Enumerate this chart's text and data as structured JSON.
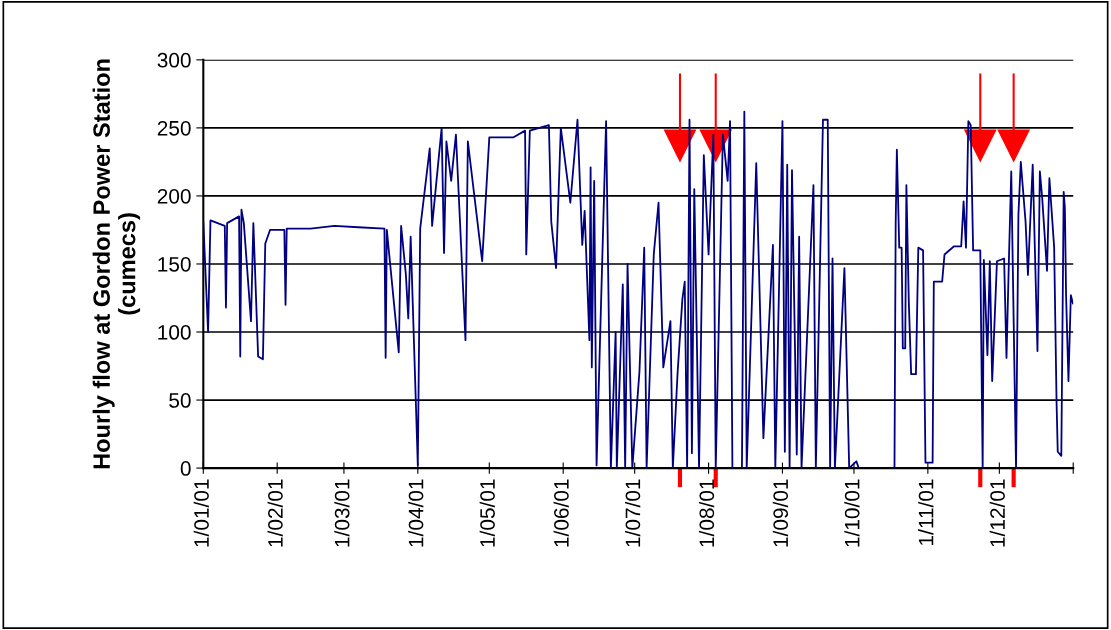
{
  "chart_data": {
    "type": "line",
    "ylabel": "Hourly flow at Gordon Power Station\n(cumecs)",
    "xlim": [
      "2001-01-01",
      "2002-01-01"
    ],
    "ylim": [
      0,
      300
    ],
    "yticks": [
      0,
      50,
      100,
      150,
      200,
      250,
      300
    ],
    "xticks": [
      {
        "value": "2001-01-01",
        "label": "1/01/01"
      },
      {
        "value": "2001-02-01",
        "label": "1/02/01"
      },
      {
        "value": "2001-03-01",
        "label": "1/03/01"
      },
      {
        "value": "2001-04-01",
        "label": "1/04/01"
      },
      {
        "value": "2001-05-01",
        "label": "1/05/01"
      },
      {
        "value": "2001-06-01",
        "label": "1/06/01"
      },
      {
        "value": "2001-07-01",
        "label": "1/07/01"
      },
      {
        "value": "2001-08-01",
        "label": "1/08/01"
      },
      {
        "value": "2001-09-01",
        "label": "1/09/01"
      },
      {
        "value": "2001-10-01",
        "label": "1/10/01"
      },
      {
        "value": "2001-11-01",
        "label": "1/11/01"
      },
      {
        "value": "2001-12-01",
        "label": "1/12/01"
      },
      {
        "value": "2002-01-01",
        "label": null
      }
    ],
    "grid": "y",
    "legend": false,
    "marker": "none",
    "line_style": "solid",
    "ref_lines": [
      {
        "axis": "x",
        "value": "2001-07-20",
        "color": "#ff0000"
      },
      {
        "axis": "x",
        "value": "2001-08-04",
        "color": "#ff0000"
      },
      {
        "axis": "x",
        "value": "2001-11-23",
        "color": "#ff0000"
      },
      {
        "axis": "x",
        "value": "2001-12-07",
        "color": "#ff0000"
      }
    ],
    "series": [
      {
        "color": "#000080",
        "x": [
          "2001-01-01",
          "2001-01-03",
          "2001-01-04",
          "2001-01-10",
          "2001-01-10T12:00",
          "2001-01-11",
          "2001-01-16",
          "2001-01-16T12:00",
          "2001-01-17",
          "2001-01-18",
          "2001-01-21",
          "2001-01-22",
          "2001-01-24",
          "2001-01-26",
          "2001-01-27",
          "2001-01-29",
          "2001-02-04",
          "2001-02-04T12:00",
          "2001-02-05",
          "2001-02-15",
          "2001-02-25",
          "2001-03-07",
          "2001-03-18",
          "2001-03-18T12:00",
          "2001-03-19",
          "2001-03-24",
          "2001-03-25",
          "2001-03-27",
          "2001-03-28",
          "2001-03-29",
          "2001-04-01",
          "2001-04-02",
          "2001-04-06",
          "2001-04-07",
          "2001-04-11",
          "2001-04-12",
          "2001-04-13",
          "2001-04-15",
          "2001-04-17",
          "2001-04-21",
          "2001-04-22",
          "2001-04-25",
          "2001-04-28",
          "2001-05-01",
          "2001-05-11",
          "2001-05-16",
          "2001-05-16T12:00",
          "2001-05-18",
          "2001-05-26",
          "2001-05-27",
          "2001-05-29",
          "2001-05-31",
          "2001-06-04",
          "2001-06-07",
          "2001-06-09",
          "2001-06-10",
          "2001-06-12",
          "2001-06-12T12:00",
          "2001-06-13",
          "2001-06-14",
          "2001-06-15",
          "2001-06-19",
          "2001-06-21",
          "2001-06-23",
          "2001-06-23T12:00",
          "2001-06-26",
          "2001-06-27",
          "2001-06-28",
          "2001-06-30",
          "2001-07-03",
          "2001-07-05",
          "2001-07-06",
          "2001-07-09",
          "2001-07-11",
          "2001-07-13",
          "2001-07-16",
          "2001-07-17",
          "2001-07-19",
          "2001-07-21",
          "2001-07-22",
          "2001-07-23",
          "2001-07-24",
          "2001-07-25",
          "2001-07-26",
          "2001-07-28",
          "2001-07-30",
          "2001-08-01",
          "2001-08-03",
          "2001-08-04",
          "2001-08-07",
          "2001-08-09",
          "2001-08-10",
          "2001-08-11",
          "2001-08-15",
          "2001-08-16",
          "2001-08-17",
          "2001-08-21",
          "2001-08-24",
          "2001-08-28",
          "2001-08-29",
          "2001-09-01",
          "2001-09-02",
          "2001-09-03",
          "2001-09-04",
          "2001-09-05",
          "2001-09-07",
          "2001-09-08",
          "2001-09-09",
          "2001-09-14",
          "2001-09-15",
          "2001-09-18",
          "2001-09-20",
          "2001-09-21",
          "2001-09-22",
          "2001-09-23",
          "2001-09-27",
          "2001-09-29",
          "2001-10-02",
          "2001-10-03",
          "2001-10-08",
          "2001-10-18",
          "2001-10-18T12:00",
          "2001-10-19",
          "2001-10-20",
          "2001-10-21",
          "2001-10-21T12:00",
          "2001-10-22T12:00",
          "2001-10-23",
          "2001-10-24",
          "2001-10-25",
          "2001-10-27",
          "2001-10-28",
          "2001-10-30",
          "2001-10-31",
          "2001-11-03",
          "2001-11-03T12:00",
          "2001-11-07",
          "2001-11-08",
          "2001-11-12",
          "2001-11-15",
          "2001-11-16",
          "2001-11-17",
          "2001-11-18",
          "2001-11-19",
          "2001-11-20",
          "2001-11-23",
          "2001-11-24",
          "2001-11-24T12:00",
          "2001-11-26",
          "2001-11-27",
          "2001-11-28",
          "2001-11-30",
          "2001-12-03",
          "2001-12-04",
          "2001-12-05",
          "2001-12-06",
          "2001-12-08",
          "2001-12-09",
          "2001-12-10",
          "2001-12-12",
          "2001-12-13",
          "2001-12-15",
          "2001-12-17",
          "2001-12-18",
          "2001-12-19",
          "2001-12-21",
          "2001-12-22",
          "2001-12-24",
          "2001-12-25",
          "2001-12-25T12:00",
          "2001-12-27",
          "2001-12-28",
          "2001-12-28T12:00",
          "2001-12-29",
          "2001-12-30",
          "2001-12-31",
          "2001-12-31T21:00"
        ],
        "values": [
          181,
          100,
          182,
          178,
          118,
          180,
          185,
          82,
          190,
          180,
          108,
          180,
          82,
          80,
          165,
          175,
          175,
          120,
          176,
          176,
          178,
          177,
          176,
          81,
          175,
          85,
          178,
          142,
          110,
          170,
          2,
          176,
          235,
          178,
          250,
          158,
          240,
          211,
          245,
          94,
          240,
          196,
          152,
          243,
          243,
          248,
          157,
          248,
          252,
          181,
          147,
          250,
          195,
          256,
          164,
          189,
          94,
          221,
          74,
          211,
          2,
          255,
          0,
          100,
          0,
          135,
          0,
          150,
          0,
          71,
          162,
          0,
          157,
          195,
          74,
          108,
          0,
          70,
          124,
          137,
          0,
          256,
          11,
          205,
          0,
          230,
          157,
          245,
          0,
          245,
          211,
          255,
          0,
          0,
          262,
          0,
          224,
          22,
          164,
          0,
          255,
          12,
          223,
          0,
          219,
          10,
          170,
          0,
          208,
          0,
          256,
          256,
          0,
          154,
          0,
          147,
          0,
          5,
          0,
          null,
          0,
          179,
          234,
          162,
          162,
          88,
          88,
          208,
          123,
          69,
          69,
          162,
          160,
          4,
          4,
          137,
          137,
          157,
          163,
          163,
          196,
          162,
          255,
          252,
          160,
          160,
          0,
          153,
          83,
          152,
          64,
          152,
          154,
          81,
          152,
          218,
          0,
          186,
          225,
          181,
          142,
          223,
          86,
          218,
          198,
          145,
          213,
          162,
          49,
          12,
          9,
          203,
          191,
          127,
          64,
          127,
          121
        ]
      }
    ]
  }
}
